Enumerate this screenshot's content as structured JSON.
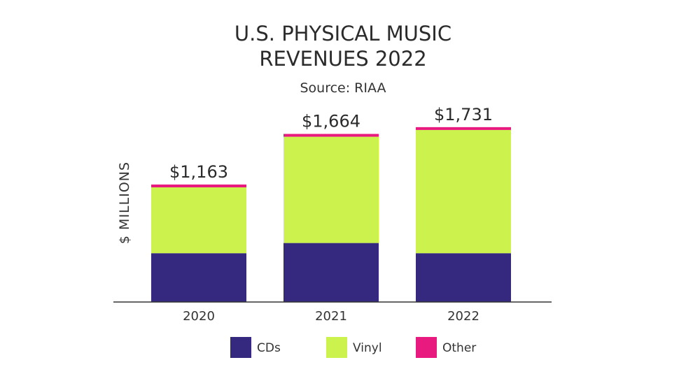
{
  "chart_data": {
    "type": "bar",
    "stacked": true,
    "title_lines": [
      "U.S. PHYSICAL MUSIC",
      "REVENUES 2022"
    ],
    "subtitle": "Source: RIAA",
    "ylabel": "$ MILLIONS",
    "xlabel": "",
    "categories": [
      "2020",
      "2021",
      "2022"
    ],
    "series": [
      {
        "name": "CDs",
        "color": "#34297f",
        "values": [
          483,
          584,
          483
        ]
      },
      {
        "name": "Vinyl",
        "color": "#ccf24e",
        "values": [
          652,
          1052,
          1220
        ]
      },
      {
        "name": "Other",
        "color": "#e8197f",
        "values": [
          28,
          28,
          28
        ]
      }
    ],
    "totals": [
      1163,
      1664,
      1731
    ],
    "total_labels": [
      "$1,163",
      "$1,664",
      "$1,731"
    ],
    "ylim": [
      0,
      1800
    ],
    "grid": false,
    "legend_position": "bottom"
  }
}
